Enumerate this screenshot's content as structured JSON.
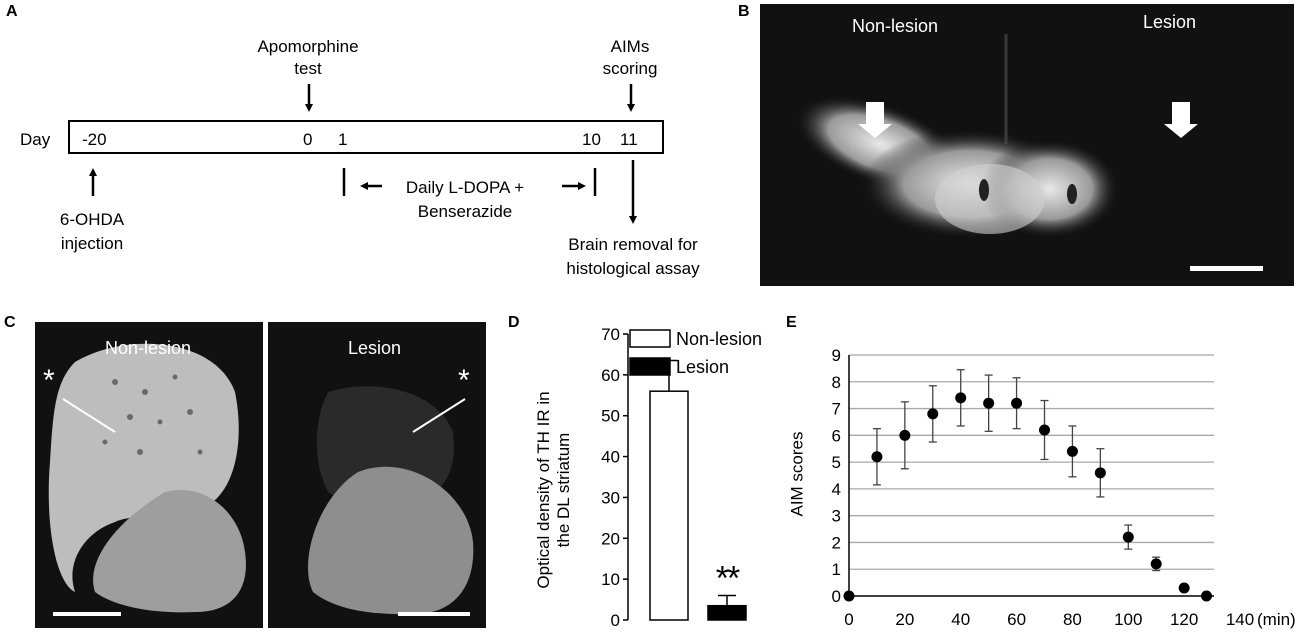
{
  "panels": {
    "a": "A",
    "b": "B",
    "c": "C",
    "d": "D",
    "e": "E"
  },
  "timeline": {
    "day_label": "Day",
    "ticks": [
      {
        "day": "-20",
        "pos": 0
      },
      {
        "day": "0",
        "pos": 20
      },
      {
        "day": "1",
        "pos": 21
      },
      {
        "day": "10",
        "pos": 30
      },
      {
        "day": "11",
        "pos": 31
      }
    ],
    "apomorphine_line1": "Apomorphine",
    "apomorphine_line2": "test",
    "aims_line1": "AIMs",
    "aims_line2": "scoring",
    "ohda_line1": "6-OHDA",
    "ohda_line2": "injection",
    "ldopa_line1": "Daily L-DOPA +",
    "ldopa_line2": "Benserazide",
    "brain_line1": "Brain removal for",
    "brain_line2": "histological assay"
  },
  "panel_b": {
    "nonlesion": "Non-lesion",
    "lesion": "Lesion"
  },
  "panel_c": {
    "nonlesion": "Non-lesion",
    "lesion": "Lesion",
    "asterisk": "*"
  },
  "chart_data": [
    {
      "type": "bar",
      "ylabel_line1": "Optical density of TH IR  in",
      "ylabel_line2": "the DL striatum",
      "categories": [
        "Non-lesion",
        "Lesion"
      ],
      "values": [
        56,
        3.5
      ],
      "errors": [
        7.5,
        2.5
      ],
      "colors": [
        "#ffffff",
        "#000000"
      ],
      "ylim": [
        0,
        70
      ],
      "yticks": [
        0,
        10,
        20,
        30,
        40,
        50,
        60,
        70
      ],
      "legend": [
        {
          "label": "Non-lesion",
          "fill": "#ffffff"
        },
        {
          "label": "Lesion",
          "fill": "#000000"
        }
      ],
      "significance": "**"
    },
    {
      "type": "scatter",
      "ylabel": "AIM scores",
      "xunit": "(min)",
      "xlim": [
        0,
        140
      ],
      "ylim": [
        0,
        9
      ],
      "xticks": [
        0,
        20,
        40,
        60,
        80,
        100,
        120,
        140
      ],
      "yticks": [
        0,
        1,
        2,
        3,
        4,
        5,
        6,
        7,
        8,
        9
      ],
      "grid": true,
      "points": [
        {
          "x": 0,
          "y": 0,
          "err": 0
        },
        {
          "x": 10,
          "y": 5.2,
          "err": 1.05
        },
        {
          "x": 20,
          "y": 6.0,
          "err": 1.25
        },
        {
          "x": 30,
          "y": 6.8,
          "err": 1.05
        },
        {
          "x": 40,
          "y": 7.4,
          "err": 1.05
        },
        {
          "x": 50,
          "y": 7.2,
          "err": 1.05
        },
        {
          "x": 60,
          "y": 7.2,
          "err": 0.95
        },
        {
          "x": 70,
          "y": 6.2,
          "err": 1.1
        },
        {
          "x": 80,
          "y": 5.4,
          "err": 0.95
        },
        {
          "x": 90,
          "y": 4.6,
          "err": 0.9
        },
        {
          "x": 100,
          "y": 2.2,
          "err": 0.45
        },
        {
          "x": 110,
          "y": 1.2,
          "err": 0.25
        },
        {
          "x": 120,
          "y": 0.3,
          "err": 0
        },
        {
          "x": 128,
          "y": 0,
          "err": 0
        }
      ]
    }
  ]
}
